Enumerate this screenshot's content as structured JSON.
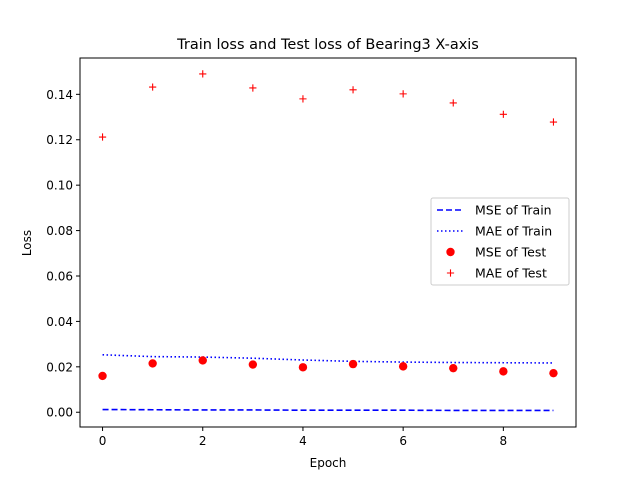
{
  "chart_data": {
    "type": "line",
    "title": "Train loss and Test loss of Bearing3 X-axis",
    "xlabel": "Epoch",
    "ylabel": "Loss",
    "xlim": [
      -0.45,
      9.45
    ],
    "ylim": [
      -0.0065,
      0.156
    ],
    "xticks": [
      0,
      2,
      4,
      6,
      8
    ],
    "yticks": [
      0.0,
      0.02,
      0.04,
      0.06,
      0.08,
      0.1,
      0.12,
      0.14
    ],
    "ytick_format": 2,
    "grid": false,
    "legend_position": "center-right",
    "x": [
      0,
      1,
      2,
      3,
      4,
      5,
      6,
      7,
      8,
      9
    ],
    "series": [
      {
        "name": "MSE of Train",
        "style": "dashed-line",
        "color": "#0000ff",
        "values": [
          0.0012,
          0.0011,
          0.001,
          0.001,
          0.0009,
          0.0009,
          0.0009,
          0.0008,
          0.0008,
          0.0008
        ]
      },
      {
        "name": "MAE of Train",
        "style": "dotted-line",
        "color": "#0000ff",
        "values": [
          0.0253,
          0.0245,
          0.0243,
          0.0238,
          0.023,
          0.0224,
          0.0221,
          0.0219,
          0.0218,
          0.0217
        ]
      },
      {
        "name": "MSE of Test",
        "style": "circle-marker",
        "color": "#ff0000",
        "values": [
          0.016,
          0.0215,
          0.0228,
          0.021,
          0.0198,
          0.0212,
          0.0202,
          0.0194,
          0.018,
          0.0172
        ]
      },
      {
        "name": "MAE of Test",
        "style": "plus-marker",
        "color": "#ff0000",
        "values": [
          0.1212,
          0.1432,
          0.149,
          0.1428,
          0.138,
          0.142,
          0.1402,
          0.1362,
          0.1312,
          0.1278
        ]
      }
    ]
  }
}
